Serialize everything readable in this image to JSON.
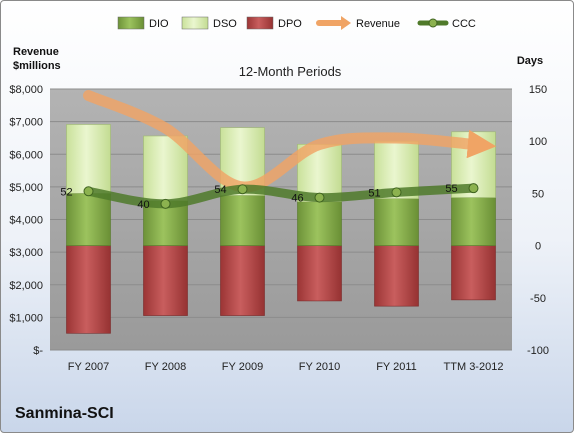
{
  "chart_data": {
    "type": "bar",
    "title": "12-Month Periods",
    "company": "Sanmina-SCI",
    "categories": [
      "FY 2007",
      "FY 2008",
      "FY 2009",
      "FY 2010",
      "FY 2011",
      "TTM 3-2012"
    ],
    "left_axis": {
      "label_line1": "Revenue",
      "label_line2": "$millions",
      "range": [
        0,
        8000
      ],
      "ticks": [
        0,
        1000,
        2000,
        3000,
        4000,
        5000,
        6000,
        7000,
        8000
      ],
      "tick_labels": [
        "$-",
        "$1,000",
        "$2,000",
        "$3,000",
        "$4,000",
        "$5,000",
        "$6,000",
        "$7,000",
        "$8,000"
      ]
    },
    "right_axis": {
      "label": "Days",
      "range": [
        -100,
        150
      ],
      "ticks": [
        -100,
        -50,
        0,
        50,
        100,
        150
      ],
      "tick_labels": [
        "-100",
        "-50",
        "0",
        "50",
        "100",
        "150"
      ]
    },
    "series": [
      {
        "name": "DIO",
        "axis": "right",
        "values": [
          50,
          43,
          48,
          42,
          45,
          46
        ]
      },
      {
        "name": "DSO",
        "axis": "right",
        "values": [
          66,
          62,
          65,
          55,
          55,
          63
        ]
      },
      {
        "name": "DPO",
        "axis": "right",
        "values": [
          -84,
          -67,
          -67,
          -53,
          -58,
          -52
        ]
      },
      {
        "name": "Revenue",
        "axis": "left",
        "values": [
          7800,
          6800,
          5000,
          6300,
          6500,
          6300
        ]
      },
      {
        "name": "CCC",
        "axis": "right",
        "values": [
          52,
          40,
          54,
          46,
          51,
          55
        ]
      }
    ],
    "ccc_labels": [
      "52",
      "40",
      "54",
      "46",
      "51",
      "55"
    ],
    "colors": {
      "DIO": "#7ea447",
      "DSO": "#d7ebb0",
      "DPO": "#b04848",
      "Revenue": "#f0a465",
      "CCC": "#4f7a2a",
      "plot_bg": "#a5a5a5"
    },
    "legend": {
      "position": "top",
      "items": [
        "DIO",
        "DSO",
        "DPO",
        "Revenue",
        "CCC"
      ]
    }
  }
}
